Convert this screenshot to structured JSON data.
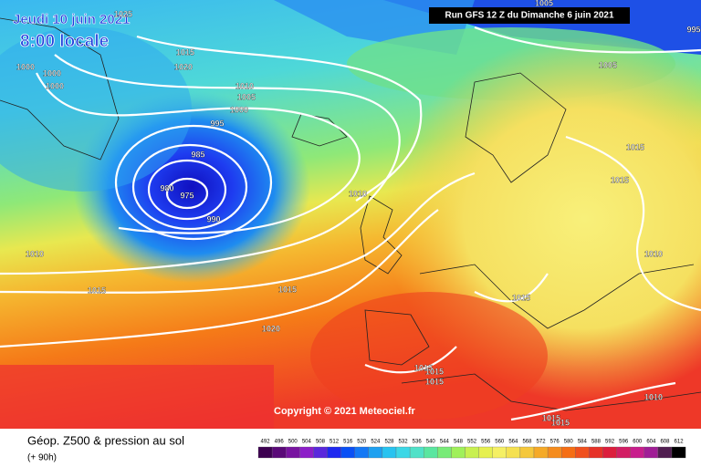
{
  "header": {
    "date": "Jeudi 10 juin 2021",
    "time": "8:00 locale",
    "run": "Run GFS 12 Z du Dimanche 6 juin 2021"
  },
  "isobar_labels": [
    "1025",
    "1015",
    "1020",
    "1000",
    "1000",
    "1000",
    "1010",
    "1005",
    "1000",
    "995",
    "985",
    "980",
    "975",
    "990",
    "1010",
    "1010",
    "1015",
    "1015",
    "1020",
    "1005",
    "995",
    "1005",
    "1015",
    "1015",
    "1010",
    "1015",
    "1015",
    "1015",
    "1015",
    "1010",
    "1015",
    "1015"
  ],
  "copyright": "Copyright © 2021 Meteociel.fr",
  "footer": {
    "title": "Géop. Z500 & pression au sol",
    "lead": "(+ 90h)"
  },
  "scale": {
    "labels": [
      "492",
      "496",
      "500",
      "504",
      "508",
      "512",
      "516",
      "520",
      "524",
      "528",
      "532",
      "536",
      "540",
      "544",
      "548",
      "552",
      "556",
      "560",
      "564",
      "568",
      "572",
      "576",
      "580",
      "584",
      "588",
      "592",
      "596",
      "600",
      "604",
      "608",
      "612"
    ],
    "colors": [
      "#3c0050",
      "#5a0a78",
      "#7814a0",
      "#8c1ec8",
      "#5a28dc",
      "#1e28f0",
      "#0a50f5",
      "#1478f5",
      "#1ea0f0",
      "#28c3f0",
      "#3cd7e6",
      "#50e1c8",
      "#5ae6a0",
      "#78eb78",
      "#a0f05a",
      "#c8f050",
      "#e6f050",
      "#f5f064",
      "#f5e150",
      "#f5c83c",
      "#f5aa28",
      "#f58c1e",
      "#f56e14",
      "#f0501e",
      "#e63228",
      "#dc1e3c",
      "#d21e64",
      "#c81e8c",
      "#a01e96",
      "#501e50",
      "#000000"
    ]
  }
}
